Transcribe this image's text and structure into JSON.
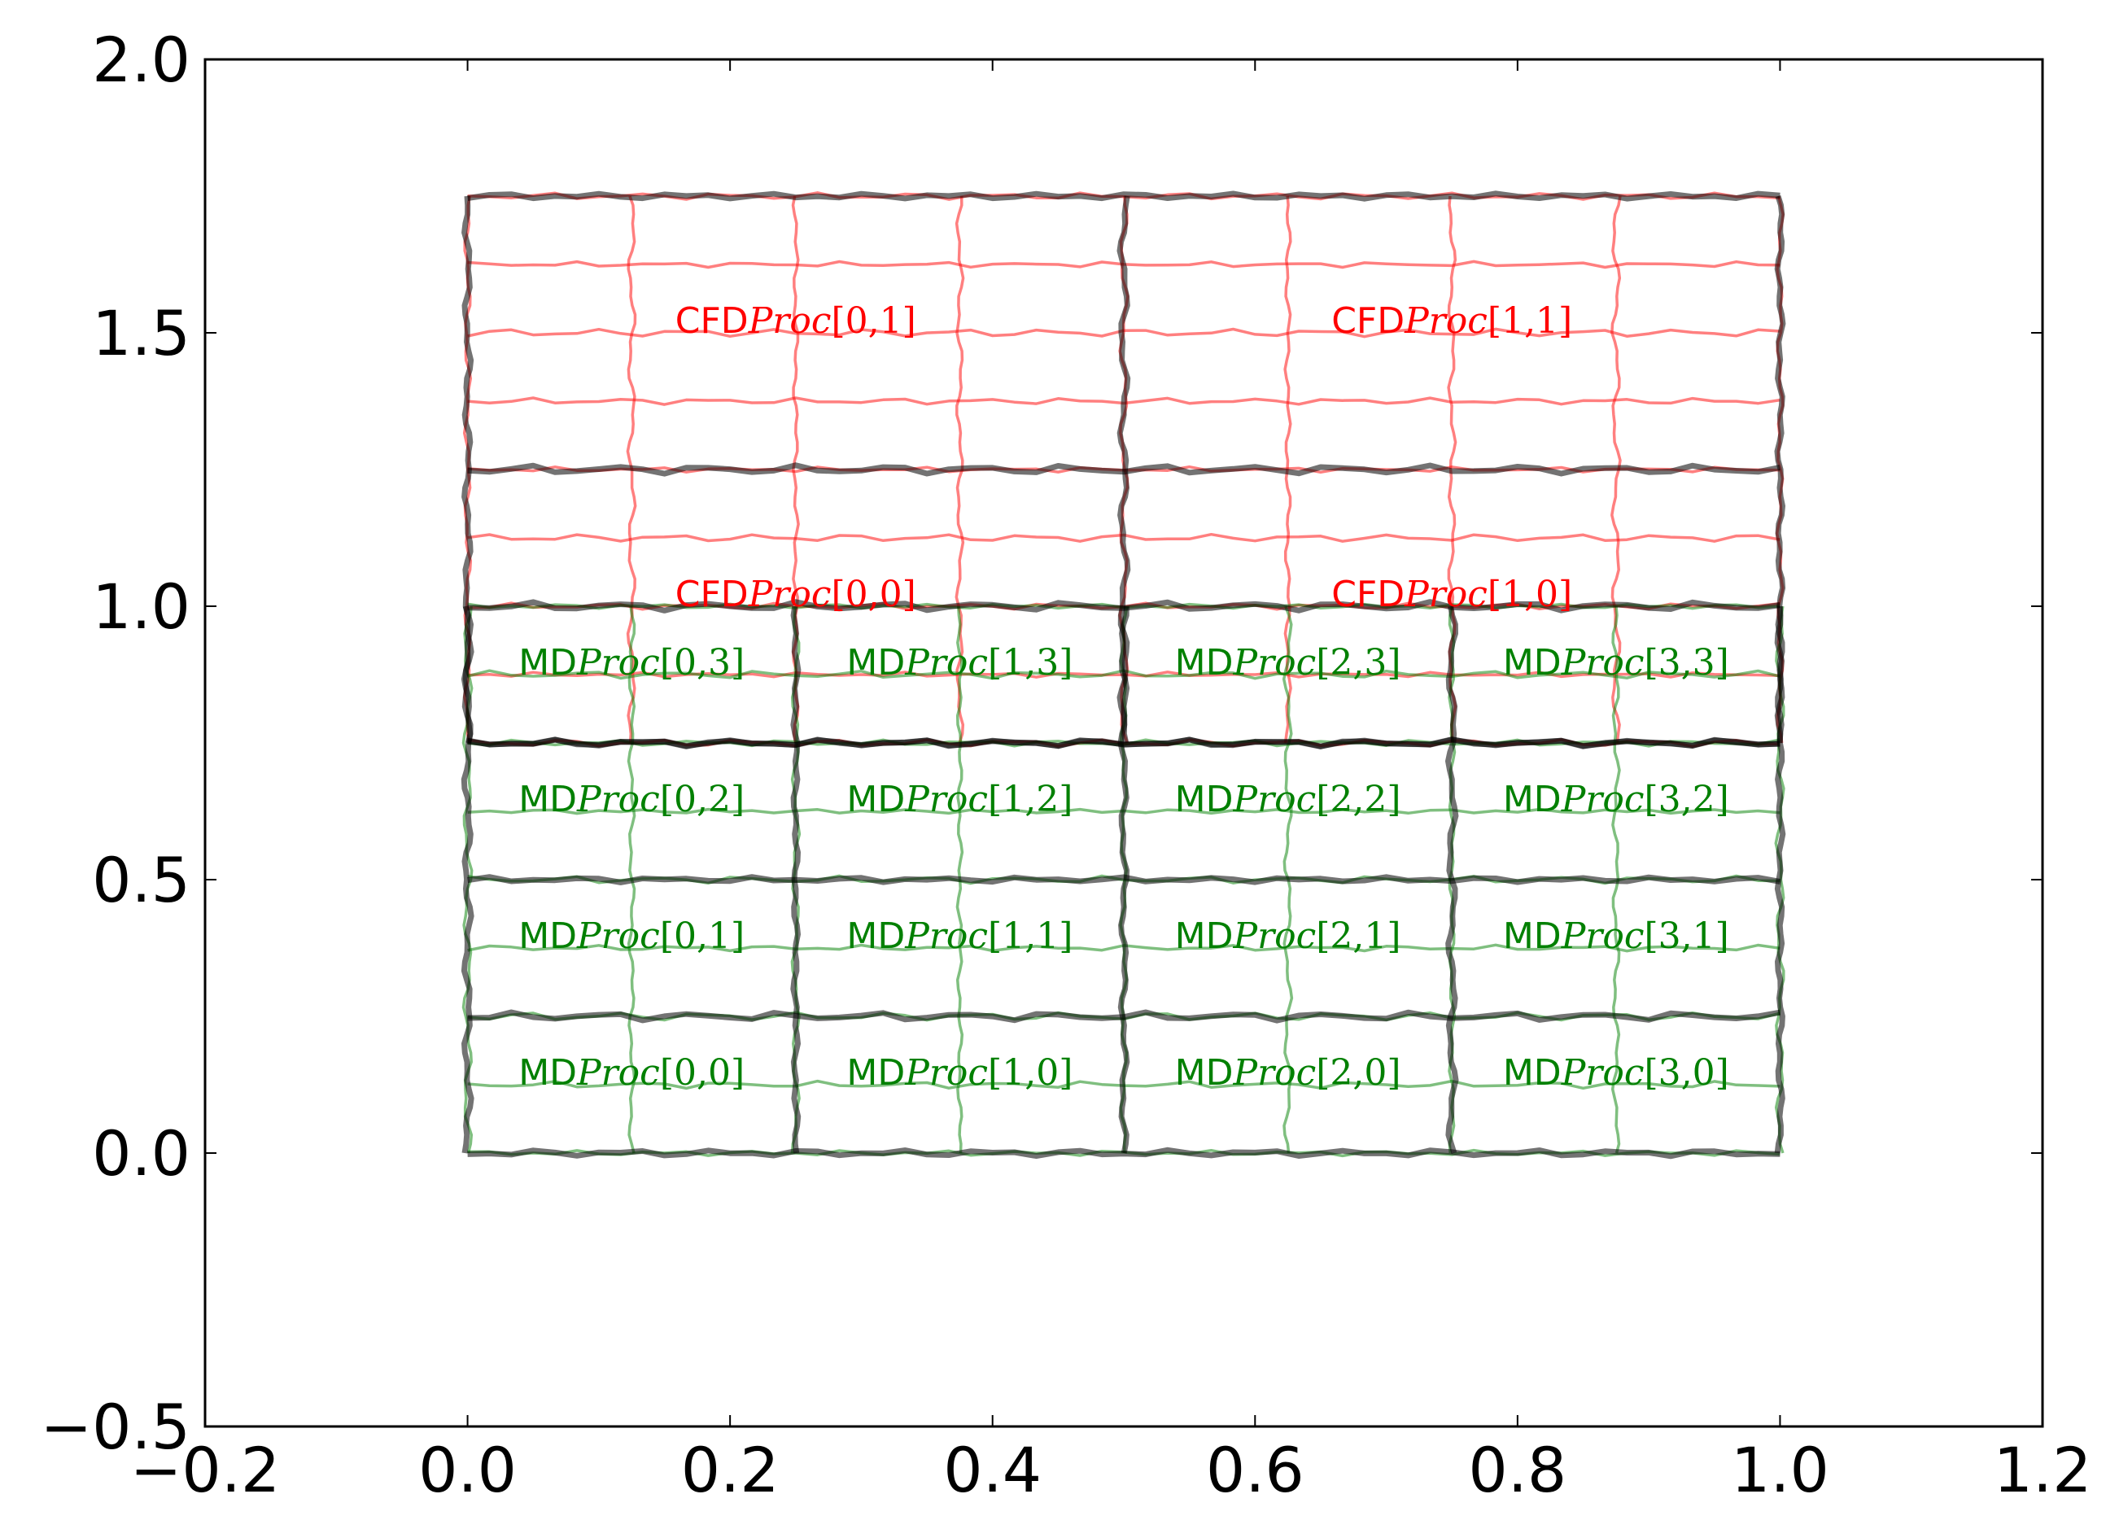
{
  "chart_data": {
    "type": "line",
    "title": "",
    "xlabel": "",
    "ylabel": "",
    "xlim": [
      -0.2,
      1.2
    ],
    "ylim": [
      -0.5,
      2.0
    ],
    "xticks": [
      -0.2,
      0.0,
      0.2,
      0.4,
      0.6,
      0.8,
      1.0,
      1.2
    ],
    "yticks": [
      -0.5,
      0.0,
      0.5,
      1.0,
      1.5,
      2.0
    ],
    "xtick_labels": [
      "−0.2",
      "0.0",
      "0.2",
      "0.4",
      "0.6",
      "0.8",
      "1.0",
      "1.2"
    ],
    "ytick_labels": [
      "−0.5",
      "0.0",
      "0.5",
      "1.0",
      "1.5",
      "2.0"
    ],
    "grid": false,
    "legend": "none",
    "series": [
      {
        "role": "cfd-cell-grid",
        "color": "#ff0000",
        "x_lines": [
          0.0,
          0.125,
          0.25,
          0.375,
          0.5,
          0.625,
          0.75,
          0.875,
          1.0
        ],
        "y_lines": [
          0.75,
          0.875,
          1.0,
          1.125,
          1.25,
          1.375,
          1.5,
          1.625,
          1.75
        ],
        "x_extent": [
          0.0,
          1.0
        ],
        "y_extent": [
          0.75,
          1.75
        ]
      },
      {
        "role": "md-cell-grid",
        "color": "#008000",
        "x_lines": [
          0.0,
          0.125,
          0.25,
          0.375,
          0.5,
          0.625,
          0.75,
          0.875,
          1.0
        ],
        "y_lines": [
          0.0,
          0.125,
          0.25,
          0.375,
          0.5,
          0.625,
          0.75,
          0.875,
          1.0
        ],
        "x_extent": [
          0.0,
          1.0
        ],
        "y_extent": [
          0.0,
          1.0
        ]
      },
      {
        "role": "cfd-processor-boundaries",
        "color": "#000000",
        "x_lines": [
          0.0,
          0.5,
          1.0
        ],
        "y_lines": [
          0.75,
          1.25,
          1.75
        ],
        "x_extent": [
          0.0,
          1.0
        ],
        "y_extent": [
          0.75,
          1.75
        ]
      },
      {
        "role": "md-processor-boundaries",
        "color": "#000000",
        "x_lines": [
          0.0,
          0.25,
          0.5,
          0.75,
          1.0
        ],
        "y_lines": [
          0.0,
          0.25,
          0.5,
          0.75,
          1.0
        ],
        "x_extent": [
          0.0,
          1.0
        ],
        "y_extent": [
          0.0,
          1.0
        ]
      }
    ],
    "annotations": [
      {
        "prefix": "CFD",
        "math": "Proc",
        "index": "[0,1]",
        "x": 0.25,
        "y": 1.5,
        "color": "#ff0000"
      },
      {
        "prefix": "CFD",
        "math": "Proc",
        "index": "[1,1]",
        "x": 0.75,
        "y": 1.5,
        "color": "#ff0000"
      },
      {
        "prefix": "CFD",
        "math": "Proc",
        "index": "[0,0]",
        "x": 0.25,
        "y": 1.0,
        "color": "#ff0000"
      },
      {
        "prefix": "CFD",
        "math": "Proc",
        "index": "[1,0]",
        "x": 0.75,
        "y": 1.0,
        "color": "#ff0000"
      },
      {
        "prefix": "MD",
        "math": "Proc",
        "index": "[0,3]",
        "x": 0.125,
        "y": 0.875,
        "color": "#008000"
      },
      {
        "prefix": "MD",
        "math": "Proc",
        "index": "[1,3]",
        "x": 0.375,
        "y": 0.875,
        "color": "#008000"
      },
      {
        "prefix": "MD",
        "math": "Proc",
        "index": "[2,3]",
        "x": 0.625,
        "y": 0.875,
        "color": "#008000"
      },
      {
        "prefix": "MD",
        "math": "Proc",
        "index": "[3,3]",
        "x": 0.875,
        "y": 0.875,
        "color": "#008000"
      },
      {
        "prefix": "MD",
        "math": "Proc",
        "index": "[0,2]",
        "x": 0.125,
        "y": 0.625,
        "color": "#008000"
      },
      {
        "prefix": "MD",
        "math": "Proc",
        "index": "[1,2]",
        "x": 0.375,
        "y": 0.625,
        "color": "#008000"
      },
      {
        "prefix": "MD",
        "math": "Proc",
        "index": "[2,2]",
        "x": 0.625,
        "y": 0.625,
        "color": "#008000"
      },
      {
        "prefix": "MD",
        "math": "Proc",
        "index": "[3,2]",
        "x": 0.875,
        "y": 0.625,
        "color": "#008000"
      },
      {
        "prefix": "MD",
        "math": "Proc",
        "index": "[0,1]",
        "x": 0.125,
        "y": 0.375,
        "color": "#008000"
      },
      {
        "prefix": "MD",
        "math": "Proc",
        "index": "[1,1]",
        "x": 0.375,
        "y": 0.375,
        "color": "#008000"
      },
      {
        "prefix": "MD",
        "math": "Proc",
        "index": "[2,1]",
        "x": 0.625,
        "y": 0.375,
        "color": "#008000"
      },
      {
        "prefix": "MD",
        "math": "Proc",
        "index": "[3,1]",
        "x": 0.875,
        "y": 0.375,
        "color": "#008000"
      },
      {
        "prefix": "MD",
        "math": "Proc",
        "index": "[0,0]",
        "x": 0.125,
        "y": 0.125,
        "color": "#008000"
      },
      {
        "prefix": "MD",
        "math": "Proc",
        "index": "[1,0]",
        "x": 0.375,
        "y": 0.125,
        "color": "#008000"
      },
      {
        "prefix": "MD",
        "math": "Proc",
        "index": "[2,0]",
        "x": 0.625,
        "y": 0.125,
        "color": "#008000"
      },
      {
        "prefix": "MD",
        "math": "Proc",
        "index": "[3,0]",
        "x": 0.875,
        "y": 0.125,
        "color": "#008000"
      }
    ]
  }
}
